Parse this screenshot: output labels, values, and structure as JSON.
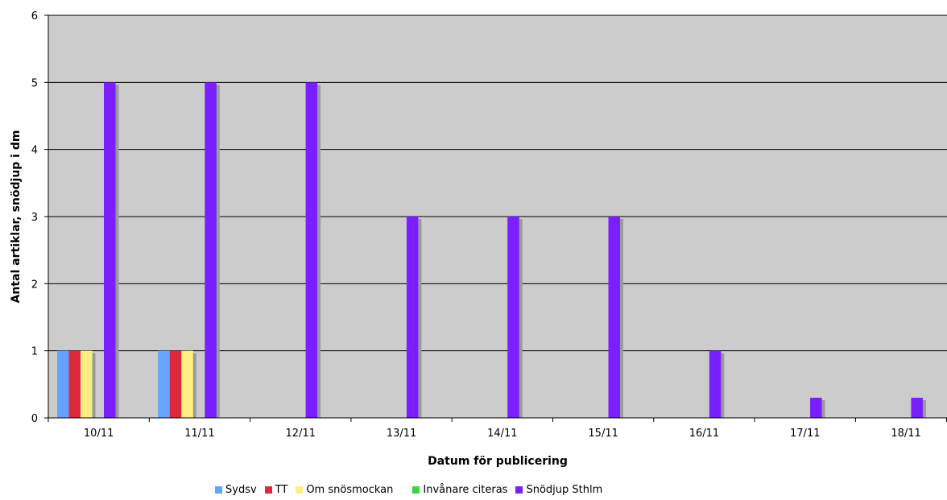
{
  "chart_data": {
    "type": "bar",
    "title": "",
    "xlabel": "Datum för publicering",
    "ylabel": "Antal artiklar, snödjup i dm",
    "ylim": [
      0,
      6
    ],
    "yticks": [
      "0",
      "1",
      "2",
      "3",
      "4",
      "5",
      "6"
    ],
    "categories": [
      "10/11",
      "11/11",
      "12/11",
      "13/11",
      "14/11",
      "15/11",
      "16/11",
      "17/11",
      "18/11"
    ],
    "series": [
      {
        "name": "Sydsv",
        "color": "#66a3ff",
        "values": [
          1,
          1,
          0,
          0,
          0,
          0,
          0,
          0,
          0
        ]
      },
      {
        "name": "TT",
        "color": "#e0283c",
        "values": [
          1,
          1,
          0,
          0,
          0,
          0,
          0,
          0,
          0
        ]
      },
      {
        "name": "Om snösmockan",
        "color": "#ffee80",
        "values": [
          1,
          1,
          0,
          0,
          0,
          0,
          0,
          0,
          0
        ]
      },
      {
        "name": "Invånare citeras",
        "color": "#3ed447",
        "values": [
          0,
          0,
          0,
          0,
          0,
          0,
          0,
          0,
          0
        ]
      },
      {
        "name": "Snödjup Sthlm",
        "color": "#7a1fff",
        "values": [
          5,
          5,
          5,
          3,
          3,
          3,
          1,
          0.3,
          0.3
        ]
      }
    ],
    "grid": true,
    "plot_background": "#cccccc",
    "legend_position": "bottom"
  }
}
